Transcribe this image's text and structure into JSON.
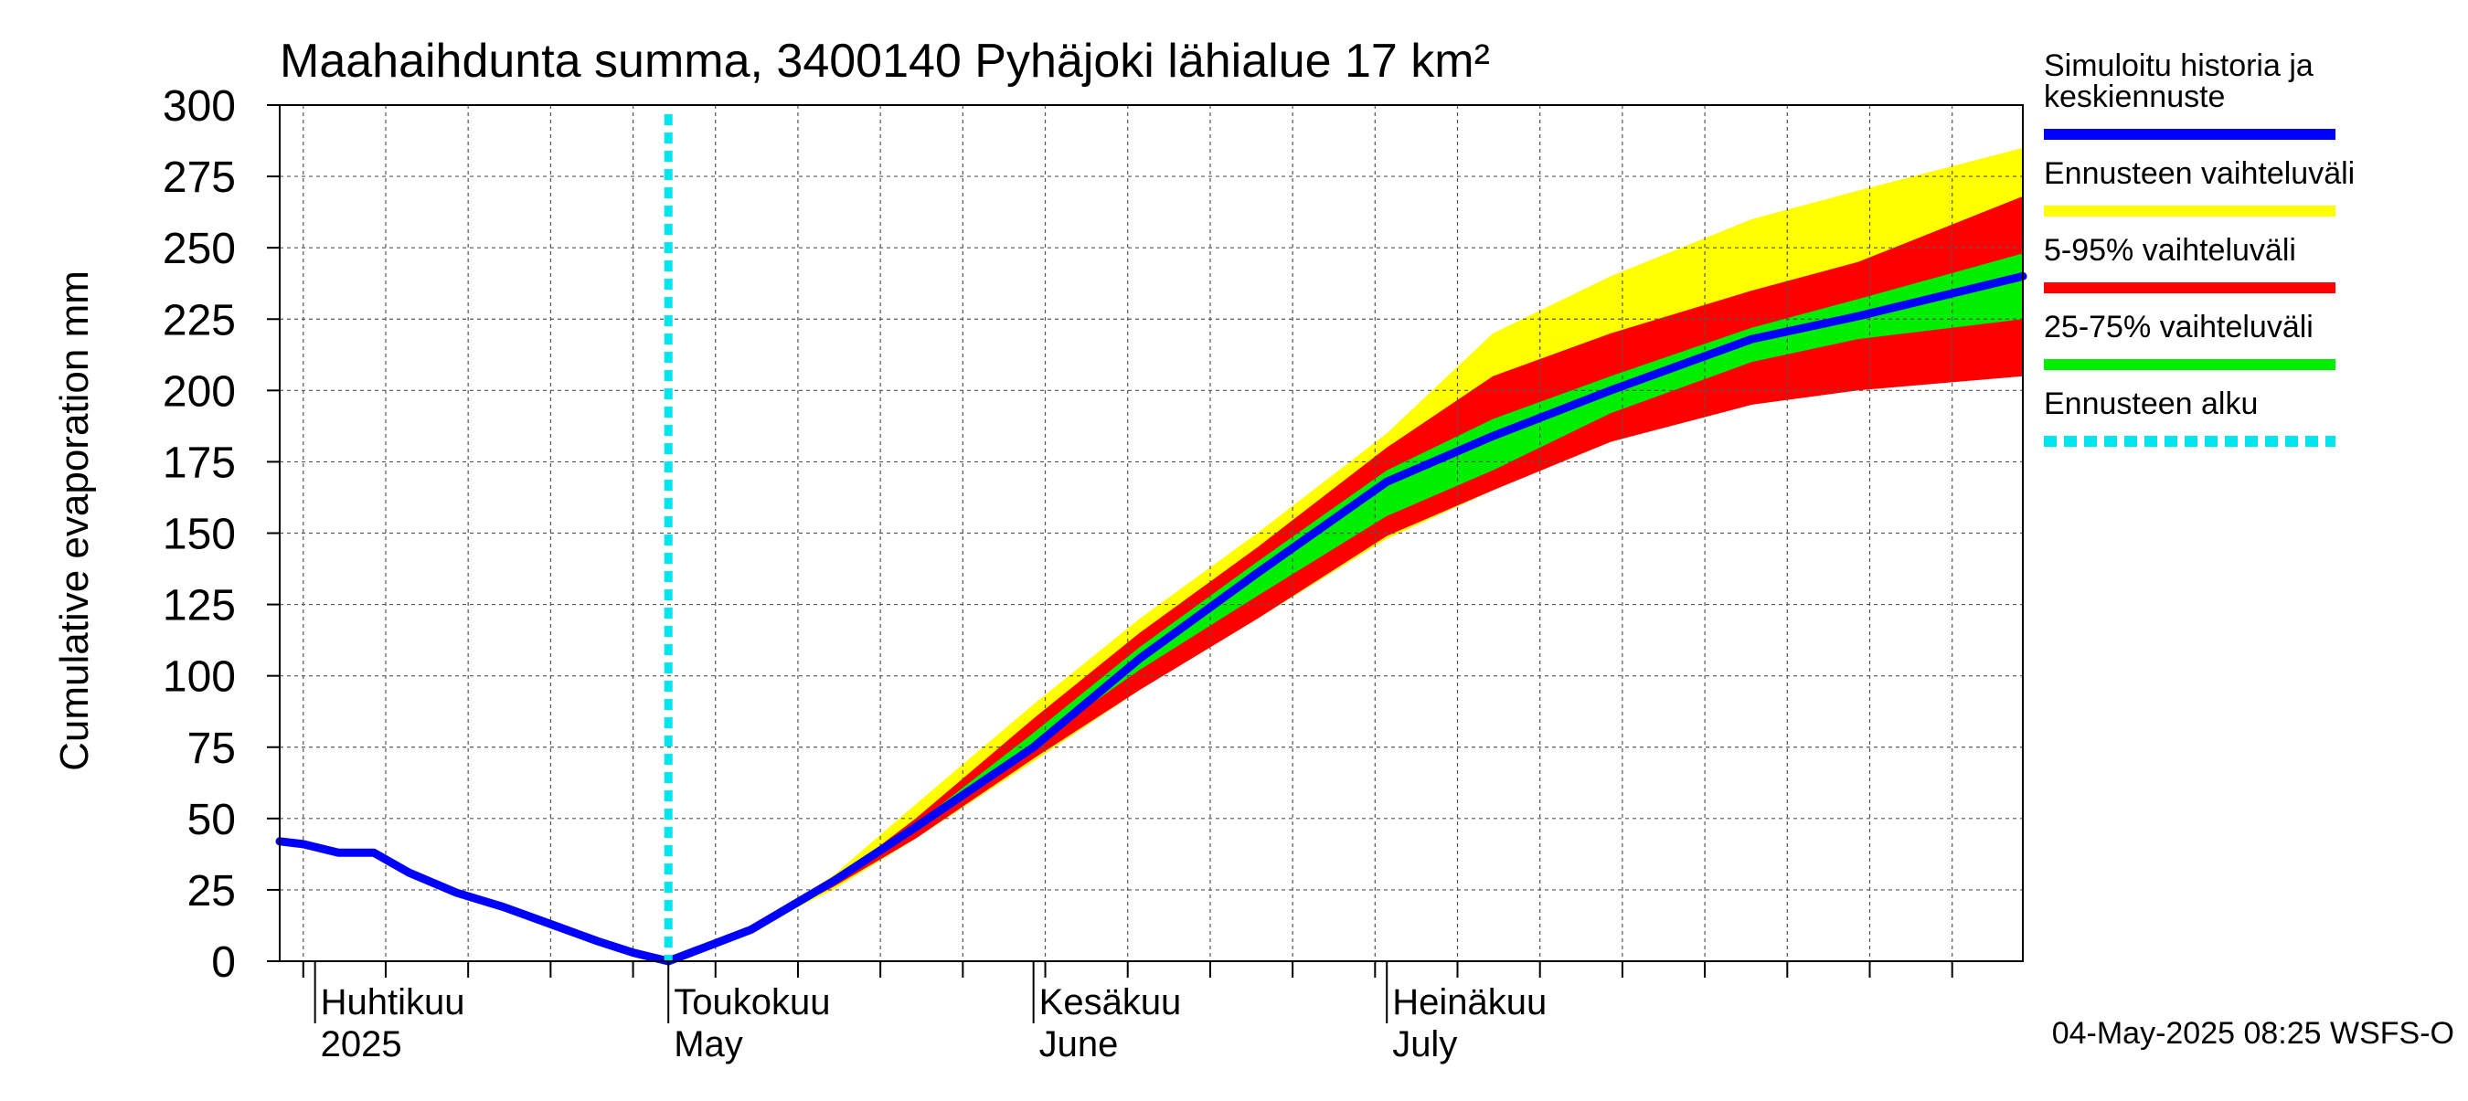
{
  "chart_data": {
    "type": "area",
    "title": "Maahaihdunta summa, 3400140 Pyhäjoki lähialue 17 km²",
    "ylabel": "Cumulative evaporation   mm",
    "xlabel": "",
    "ylim": [
      0,
      300
    ],
    "yticks": [
      0,
      25,
      50,
      75,
      100,
      125,
      150,
      175,
      200,
      225,
      250,
      275,
      300
    ],
    "xlim": [
      "2025-03-29",
      "2025-08-24"
    ],
    "grid": true,
    "legend_position": "right",
    "timestamp": "04-May-2025 08:25 WSFS-O",
    "x_month_labels": [
      {
        "date": "2025-04-01",
        "line1": "Huhtikuu",
        "line2": "2025"
      },
      {
        "date": "2025-05-01",
        "line1": "Toukokuu",
        "line2": "May"
      },
      {
        "date": "2025-06-01",
        "line1": "Kesäkuu",
        "line2": "June"
      },
      {
        "date": "2025-07-01",
        "line1": "Heinäkuu",
        "line2": "July"
      }
    ],
    "forecast_start": "2025-05-01",
    "legend": [
      {
        "label": "Simuloitu historia ja keskiennuste",
        "lines": [
          "Simuloitu historia ja",
          "keskiennuste"
        ],
        "color": "#0000ff",
        "style": "solid"
      },
      {
        "label": "Ennusteen vaihteluväli",
        "lines": [
          "Ennusteen vaihteluväli"
        ],
        "color": "#ffff00",
        "style": "solid"
      },
      {
        "label": "5-95% vaihteluväli",
        "lines": [
          "5-95% vaihteluväli"
        ],
        "color": "#ff0000",
        "style": "solid"
      },
      {
        "label": "25-75% vaihteluväli",
        "lines": [
          "25-75% vaihteluväli"
        ],
        "color": "#00ee00",
        "style": "solid"
      },
      {
        "label": "Ennusteen alku",
        "lines": [
          "Ennusteen alku"
        ],
        "color": "#00e5ee",
        "style": "dotted"
      }
    ],
    "history": {
      "x": [
        "2025-03-29",
        "2025-03-31",
        "2025-04-03",
        "2025-04-06",
        "2025-04-09",
        "2025-04-13",
        "2025-04-17",
        "2025-04-21",
        "2025-04-25",
        "2025-04-28",
        "2025-05-01"
      ],
      "y": [
        42,
        41,
        38,
        38,
        31,
        24,
        19,
        13,
        7,
        3,
        0
      ]
    },
    "series": [
      {
        "name": "Ennusteen vaihteluväli",
        "color": "#ffff00",
        "x": [
          "2025-05-01",
          "2025-05-08",
          "2025-05-15",
          "2025-05-22",
          "2025-06-01",
          "2025-06-10",
          "2025-06-20",
          "2025-07-01",
          "2025-07-10",
          "2025-07-20",
          "2025-08-01",
          "2025-08-10",
          "2025-08-24"
        ],
        "low": [
          0,
          11,
          25,
          43,
          70,
          95,
          120,
          148,
          165,
          182,
          200,
          203,
          210
        ],
        "high": [
          0,
          12,
          30,
          55,
          90,
          120,
          150,
          185,
          220,
          240,
          260,
          270,
          285
        ]
      },
      {
        "name": "5-95% vaihteluväli",
        "color": "#ff0000",
        "x": [
          "2025-05-01",
          "2025-05-08",
          "2025-05-15",
          "2025-05-22",
          "2025-06-01",
          "2025-06-10",
          "2025-06-20",
          "2025-07-01",
          "2025-07-10",
          "2025-07-20",
          "2025-08-01",
          "2025-08-10",
          "2025-08-24"
        ],
        "low": [
          0,
          11,
          26,
          43,
          71,
          95,
          120,
          149,
          165,
          182,
          195,
          200,
          205
        ],
        "high": [
          0,
          12,
          28,
          50,
          85,
          115,
          145,
          180,
          205,
          220,
          235,
          245,
          268
        ]
      },
      {
        "name": "25-75% vaihteluväli",
        "color": "#00ee00",
        "x": [
          "2025-05-01",
          "2025-05-08",
          "2025-05-15",
          "2025-05-22",
          "2025-06-01",
          "2025-06-10",
          "2025-06-20",
          "2025-07-01",
          "2025-07-10",
          "2025-07-20",
          "2025-08-01",
          "2025-08-10",
          "2025-08-24"
        ],
        "low": [
          0,
          11,
          27,
          46,
          76,
          102,
          128,
          156,
          172,
          192,
          210,
          218,
          225
        ],
        "high": [
          0,
          12,
          29,
          48,
          80,
          110,
          140,
          172,
          190,
          205,
          222,
          232,
          248
        ]
      },
      {
        "name": "Simuloitu historia ja keskiennuste",
        "color": "#0000ff",
        "x": [
          "2025-05-01",
          "2025-05-08",
          "2025-05-15",
          "2025-05-22",
          "2025-06-01",
          "2025-06-10",
          "2025-06-20",
          "2025-07-01",
          "2025-07-10",
          "2025-07-20",
          "2025-08-01",
          "2025-08-10",
          "2025-08-24"
        ],
        "y": [
          0,
          11,
          28,
          47,
          75,
          106,
          136,
          168,
          184,
          200,
          218,
          226,
          240
        ]
      }
    ]
  }
}
